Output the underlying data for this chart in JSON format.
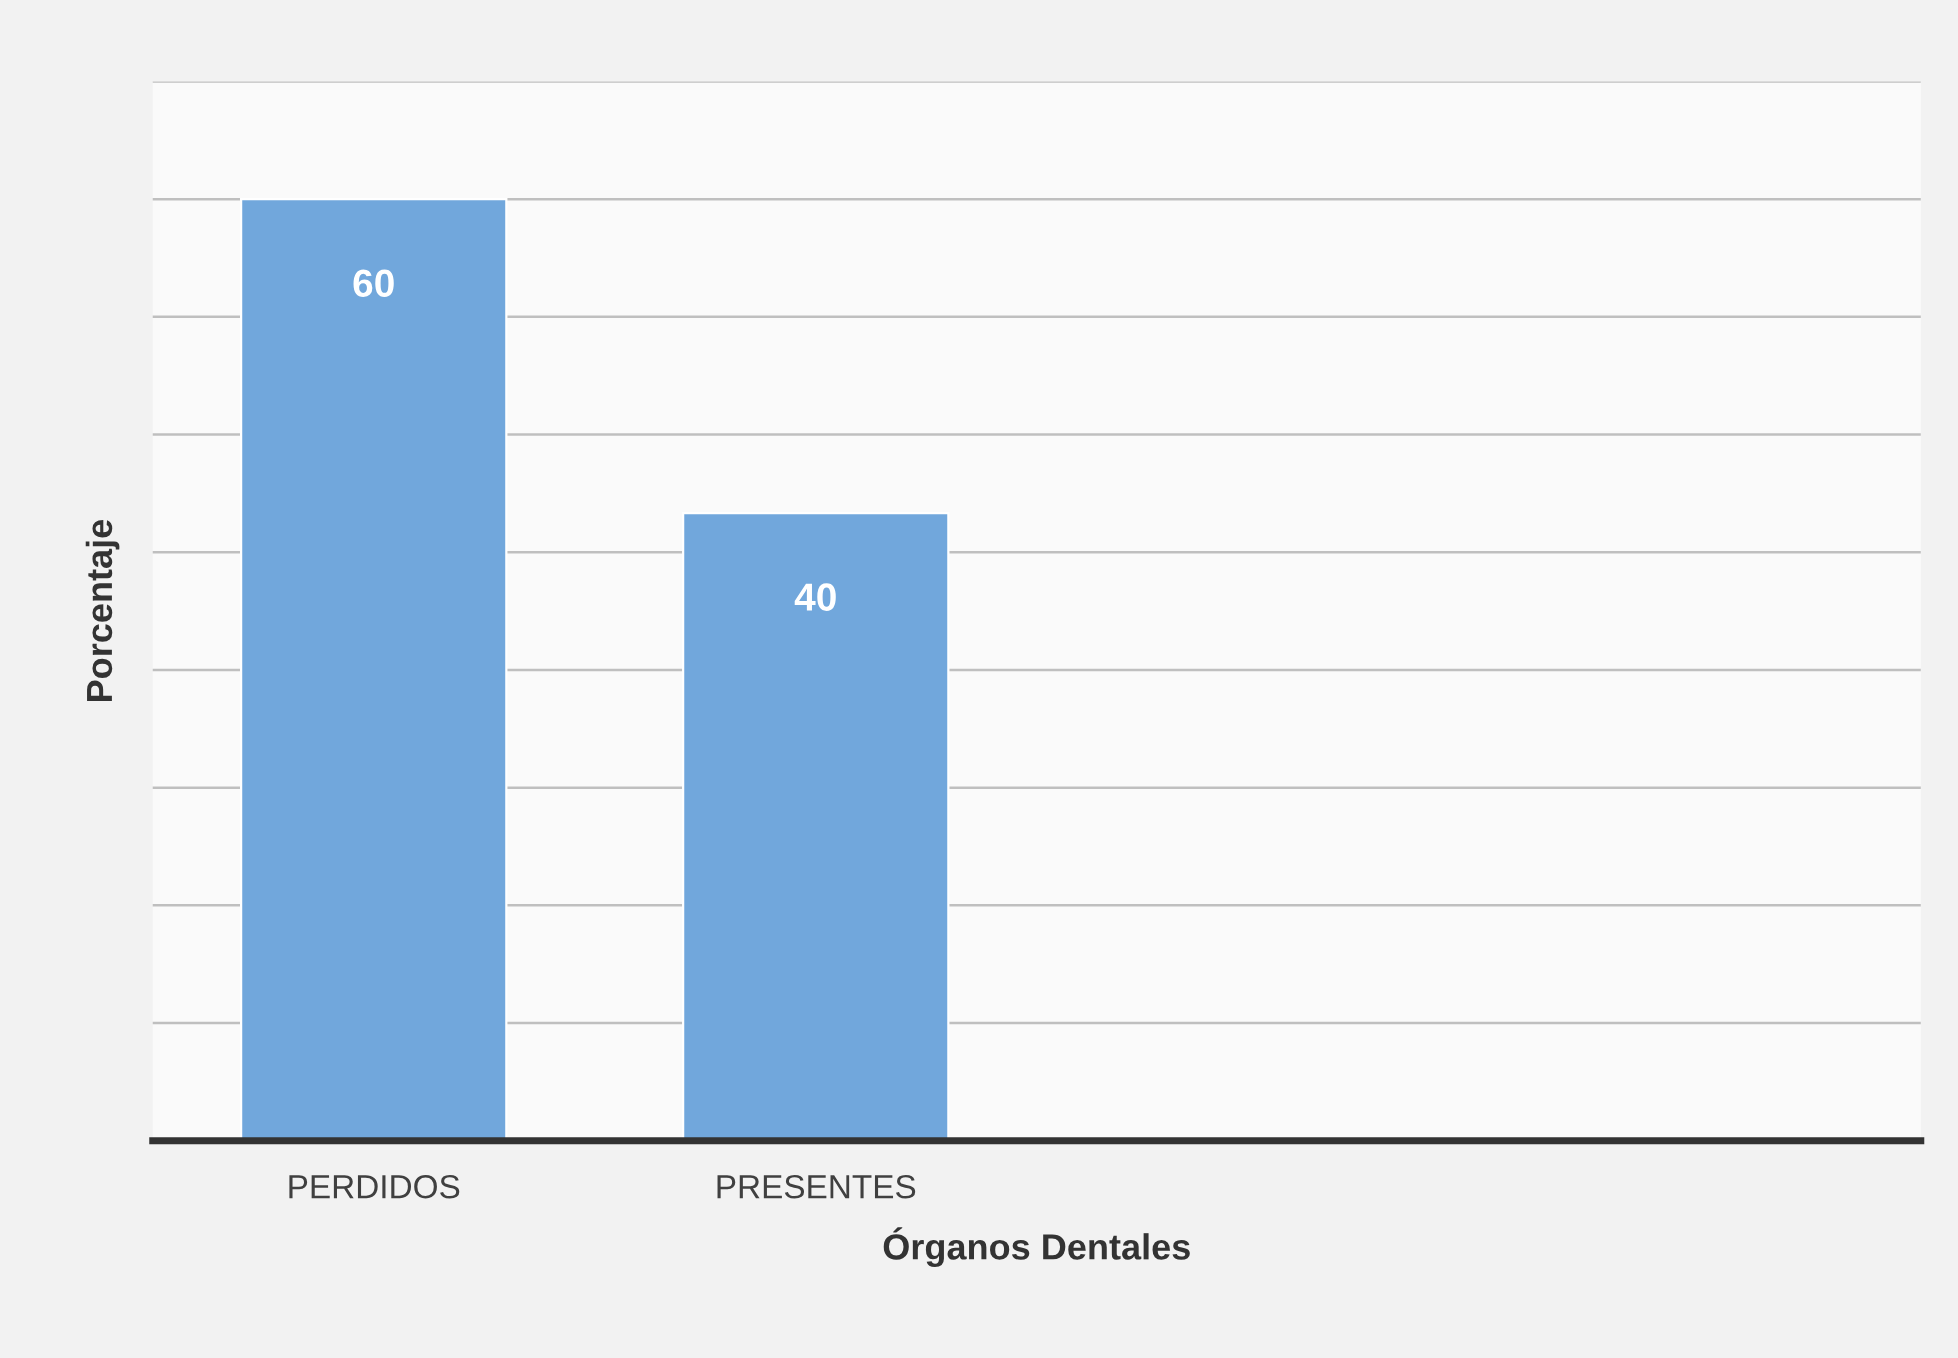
{
  "chart_data": {
    "type": "bar",
    "xlabel": "Órganos Dentales",
    "ylabel": "Porcentaje",
    "categories": [
      "PERDIDOS",
      "PRESENTES",
      null,
      null
    ],
    "values": [
      60,
      40,
      null,
      null
    ],
    "color": "#71a7dc",
    "ylim": [
      0,
      67.5
    ],
    "yticks": [
      {
        "value": 0,
        "label": null
      },
      {
        "value": 7.5,
        "label": null
      },
      {
        "value": 15,
        "label": null
      },
      {
        "value": 22.5,
        "label": null
      },
      {
        "value": 30,
        "label": null
      },
      {
        "value": 37.5,
        "label": null
      },
      {
        "value": 45,
        "label": null
      },
      {
        "value": 52.5,
        "label": null
      },
      {
        "value": 60,
        "label": null
      },
      {
        "value": 67.5,
        "label": null
      }
    ],
    "grid": "y",
    "data_labels": true,
    "tick_labels": "x"
  }
}
